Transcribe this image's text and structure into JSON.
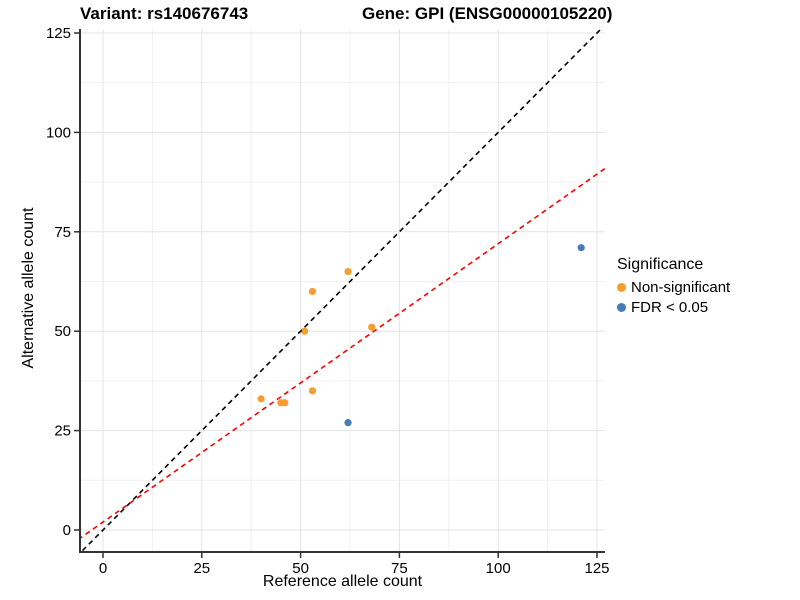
{
  "chart_data": {
    "type": "scatter",
    "titles": {
      "left": "Variant: rs140676743",
      "right": "Gene: GPI (ENSG00000105220)"
    },
    "xlabel": "Reference allele count",
    "ylabel": "Alternative allele count",
    "x_ticks": [
      0,
      25,
      50,
      75,
      100,
      125
    ],
    "y_ticks": [
      0,
      25,
      50,
      75,
      100,
      125
    ],
    "xlim": [
      0,
      125
    ],
    "ylim": [
      0,
      125
    ],
    "grid": {
      "major": true,
      "minor": true
    },
    "legend": {
      "title": "Significance",
      "position": "right",
      "items": [
        {
          "label": "Non-significant",
          "color": "#F89C2E"
        },
        {
          "label": "FDR < 0.05",
          "color": "#467DB4"
        }
      ]
    },
    "series": [
      {
        "name": "Non-significant",
        "color": "#F89C2E",
        "points": [
          [
            40,
            33
          ],
          [
            45,
            32
          ],
          [
            46,
            32
          ],
          [
            51,
            50
          ],
          [
            53,
            35
          ],
          [
            53,
            60
          ],
          [
            62,
            65
          ],
          [
            68,
            51
          ]
        ]
      },
      {
        "name": "FDR < 0.05",
        "color": "#467DB4",
        "points": [
          [
            62,
            27
          ],
          [
            121,
            71
          ]
        ]
      }
    ],
    "lines": [
      {
        "name": "identity-line",
        "color": "#000000",
        "linetype": "dashed",
        "slope": 1,
        "intercept": 0
      },
      {
        "name": "regression-line",
        "color": "#FF0000",
        "linetype": "dashed",
        "slope": 0.7,
        "intercept": 2
      }
    ],
    "style_colors": {
      "grid_major": "#E4E4E4",
      "grid_minor": "#F1F1F1",
      "axis_line": "#333333",
      "tick_label": "#000000"
    }
  }
}
